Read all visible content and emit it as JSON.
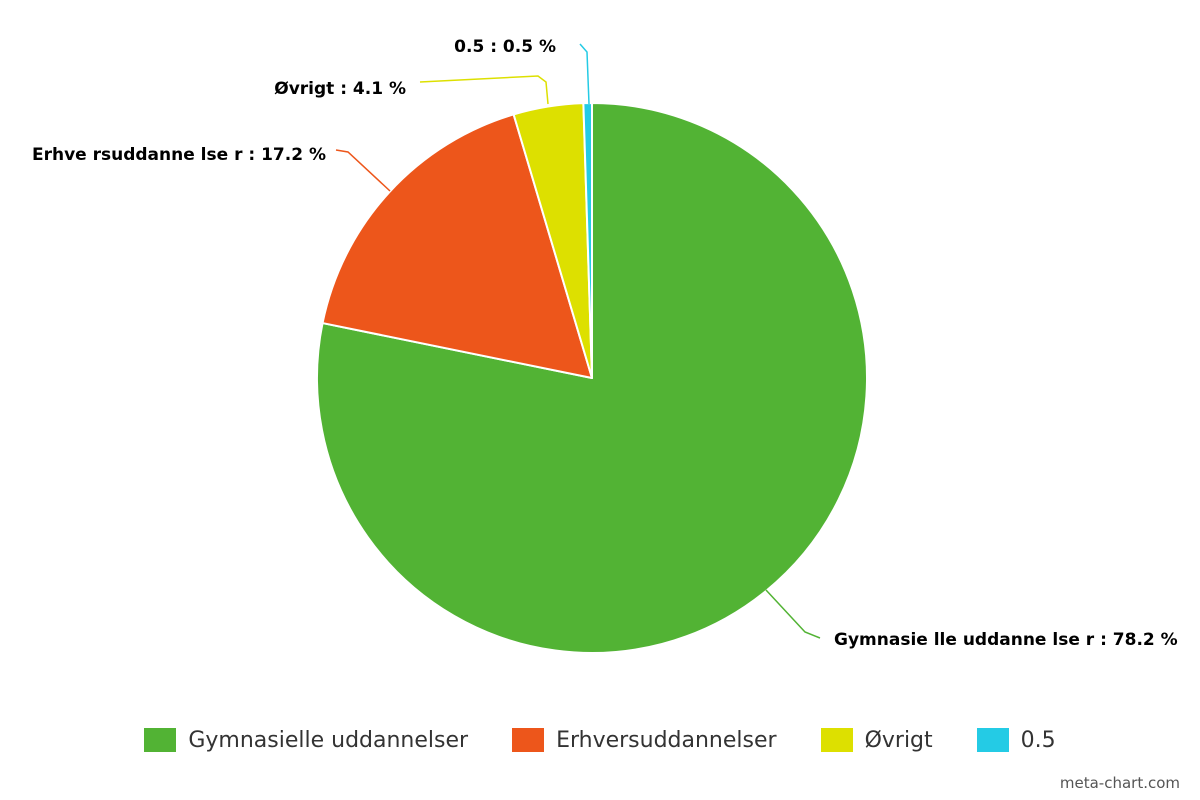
{
  "chart_data": {
    "type": "pie",
    "title": "",
    "slices": [
      {
        "name": "Gymnasielle uddannelser",
        "value": 78.2,
        "label": "Gymnasie lle uddanne lse r : 78.2 %",
        "color": "#52b334"
      },
      {
        "name": "Erhversuddannelser",
        "value": 17.2,
        "label": "Erhve rsuddanne lse r : 17.2 %",
        "color": "#ed561b"
      },
      {
        "name": "Øvrigt",
        "value": 4.1,
        "label": "Øvrigt : 4.1 %",
        "color": "#dde000"
      },
      {
        "name": "0.5",
        "value": 0.5,
        "label": "0.5 : 0.5 %",
        "color": "#24cbe5"
      }
    ],
    "legend_position": "bottom"
  },
  "credit": "meta-chart.com"
}
